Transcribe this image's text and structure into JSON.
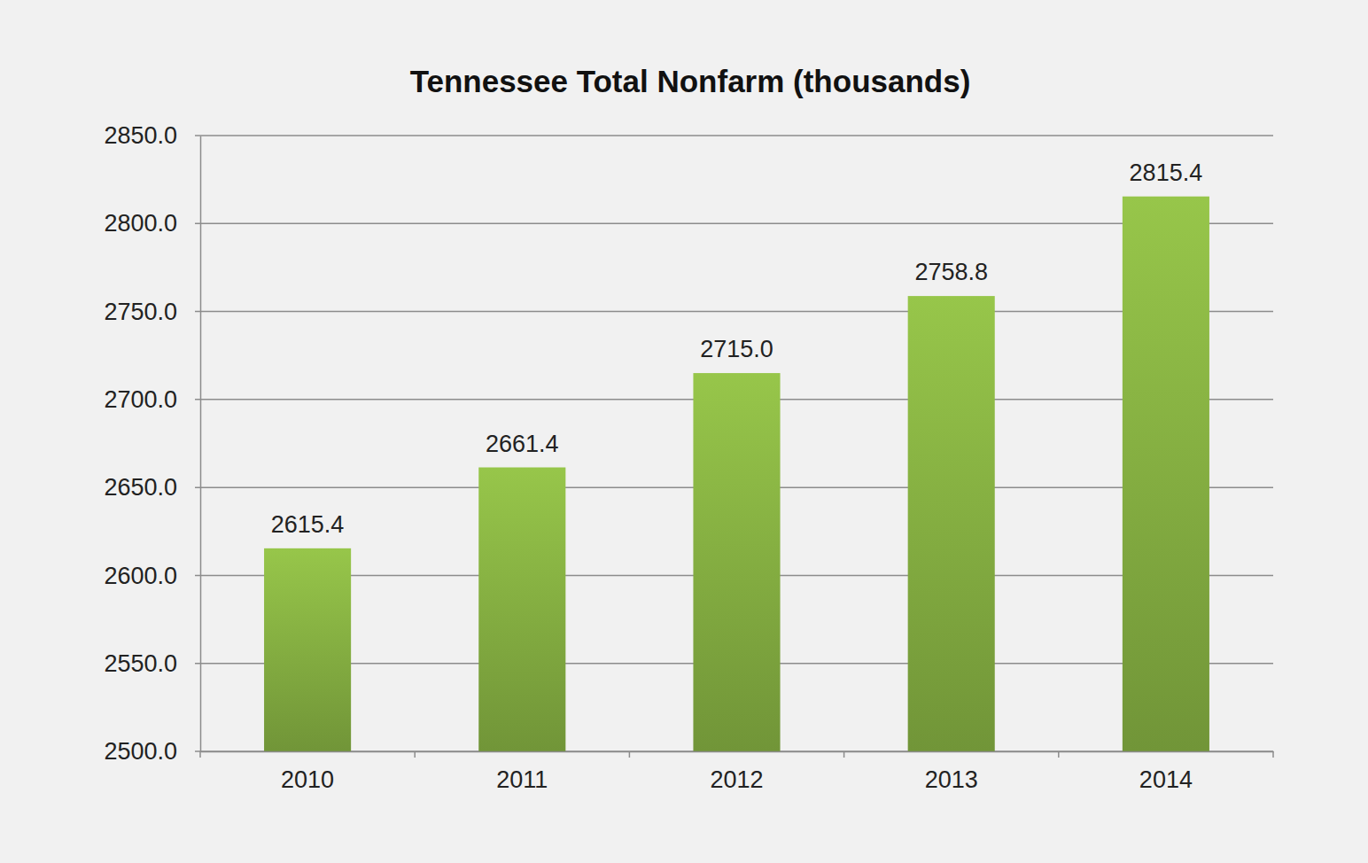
{
  "chart_data": {
    "type": "bar",
    "title": "Tennessee Total Nonfarm (thousands)",
    "categories": [
      "2010",
      "2011",
      "2012",
      "2013",
      "2014"
    ],
    "values": [
      2615.4,
      2661.4,
      2715.0,
      2758.8,
      2815.4
    ],
    "value_labels": [
      "2615.4",
      "2661.4",
      "2715.0",
      "2758.8",
      "2815.4"
    ],
    "color": "#8ab544",
    "ylim": [
      2500,
      2850
    ],
    "yticks": [
      {
        "value": 2500,
        "label": "2500.0"
      },
      {
        "value": 2550,
        "label": "2550.0"
      },
      {
        "value": 2600,
        "label": "2600.0"
      },
      {
        "value": 2650,
        "label": "2650.0"
      },
      {
        "value": 2700,
        "label": "2700.0"
      },
      {
        "value": 2750,
        "label": "2750.0"
      },
      {
        "value": 2800,
        "label": "2800.0"
      },
      {
        "value": 2850,
        "label": "2850.0"
      }
    ],
    "grid": true,
    "data_labels": true
  }
}
